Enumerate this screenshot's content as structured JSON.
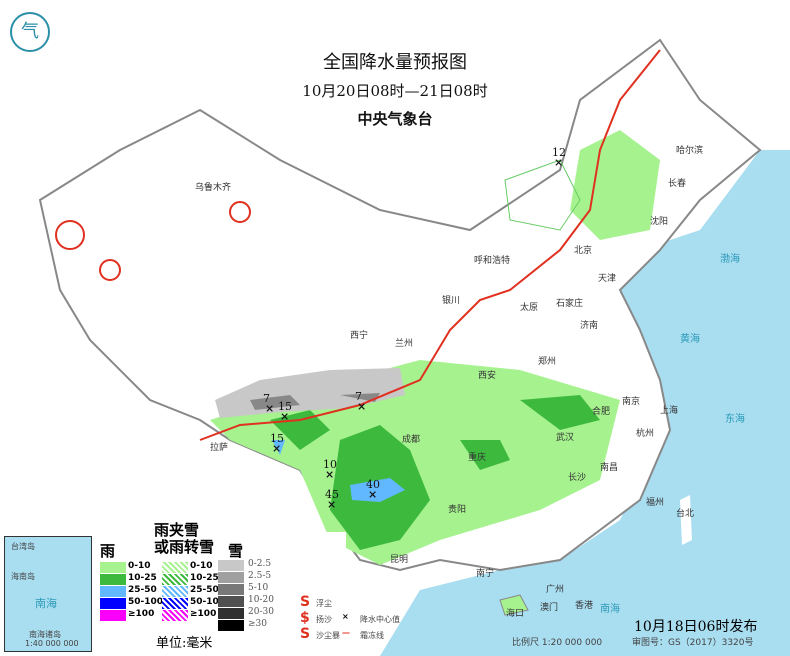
{
  "header": {
    "title": "全国降水量预报图",
    "period": "10月20日08时—21日08时",
    "agency": "中央气象台"
  },
  "footer": {
    "issued": "10月18日06时发布",
    "scale": "比例尺 1:20 000 000",
    "approval": "审图号：GS（2017）3320号"
  },
  "colors": {
    "sea": "#a9ddf0",
    "land": "#ffffff",
    "rain_0_10": "#a6f28f",
    "rain_10_25": "#3dba3d",
    "rain_25_50": "#61b8ff",
    "rain_50_100": "#0000fe",
    "rain_ge100": "#fa00fa",
    "snow_light": "#c8c8c8",
    "front": "#e03020"
  },
  "cities": [
    "乌鲁木齐",
    "哈尔滨",
    "长春",
    "沈阳",
    "北京",
    "天津",
    "呼和浩特",
    "石家庄",
    "太原",
    "济南",
    "银川",
    "西宁",
    "兰州",
    "郑州",
    "西安",
    "拉萨",
    "成都",
    "重庆",
    "武汉",
    "合肥",
    "南京",
    "上海",
    "杭州",
    "南昌",
    "长沙",
    "贵阳",
    "昆明",
    "南宁",
    "广州",
    "澳门",
    "香港",
    "海口",
    "福州",
    "台北"
  ],
  "precip_centers": [
    "12",
    "7",
    "15",
    "7",
    "15",
    "10",
    "40",
    "45"
  ],
  "seas": [
    "渤海",
    "黄海",
    "东海",
    "南海"
  ],
  "legend": {
    "rain_header": "雨",
    "mix_header": "雨夹雪\n或雨转雪",
    "snow_header": "雪",
    "rain": [
      "0-10",
      "10-25",
      "25-50",
      "50-100",
      "≥100"
    ],
    "mix": [
      "0-10",
      "10-25",
      "25-50",
      "50-100",
      "≥100"
    ],
    "snow": [
      "0-2.5",
      "2.5-5",
      "5-10",
      "10-20",
      "20-30",
      "≥30"
    ],
    "unit": "单位:毫米",
    "symbols": [
      "浮尘",
      "扬沙",
      "沙尘暴",
      "降水中心值",
      "霜冻线"
    ]
  },
  "inset": {
    "labels": [
      "台湾岛",
      "海南岛",
      "南海",
      "南海诸岛"
    ],
    "scale": "1:40 000 000"
  }
}
